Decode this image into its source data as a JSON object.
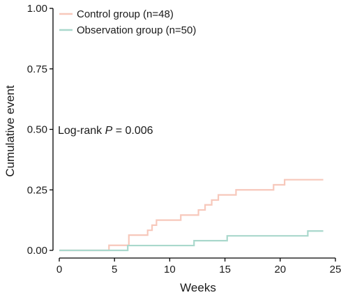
{
  "chart_data": {
    "type": "line",
    "step": true,
    "xlabel": "Weeks",
    "ylabel": "Cumulative event",
    "xlim": [
      0,
      25
    ],
    "ylim": [
      0,
      1
    ],
    "xticks": [
      "0",
      "5",
      "10",
      "15",
      "20",
      "25"
    ],
    "yticks": [
      "0.00",
      "0.25",
      "0.50",
      "0.75",
      "1.00"
    ],
    "grid": false,
    "legend": "top-left",
    "annotation": {
      "prefix": "Log-rank ",
      "italic": "P",
      "suffix": " = 0.006"
    },
    "series": [
      {
        "name": "Control group (n=48)",
        "color": "#f7c8bb",
        "x": [
          0,
          4.5,
          6.3,
          8.0,
          8.4,
          8.8,
          9.4,
          11.0,
          12.0,
          12.6,
          13.2,
          13.8,
          14.4,
          15.0,
          16.0,
          19.4,
          20.4,
          23.9
        ],
        "y": [
          0,
          0.021,
          0.063,
          0.083,
          0.104,
          0.125,
          0.125,
          0.146,
          0.146,
          0.167,
          0.188,
          0.208,
          0.229,
          0.229,
          0.25,
          0.271,
          0.292,
          0.292
        ]
      },
      {
        "name": "Observation group (n=50)",
        "color": "#a9d8cc",
        "x": [
          0,
          6.2,
          12.2,
          15.2,
          22.5,
          23.9
        ],
        "y": [
          0,
          0.02,
          0.04,
          0.06,
          0.08,
          0.08
        ]
      }
    ]
  }
}
